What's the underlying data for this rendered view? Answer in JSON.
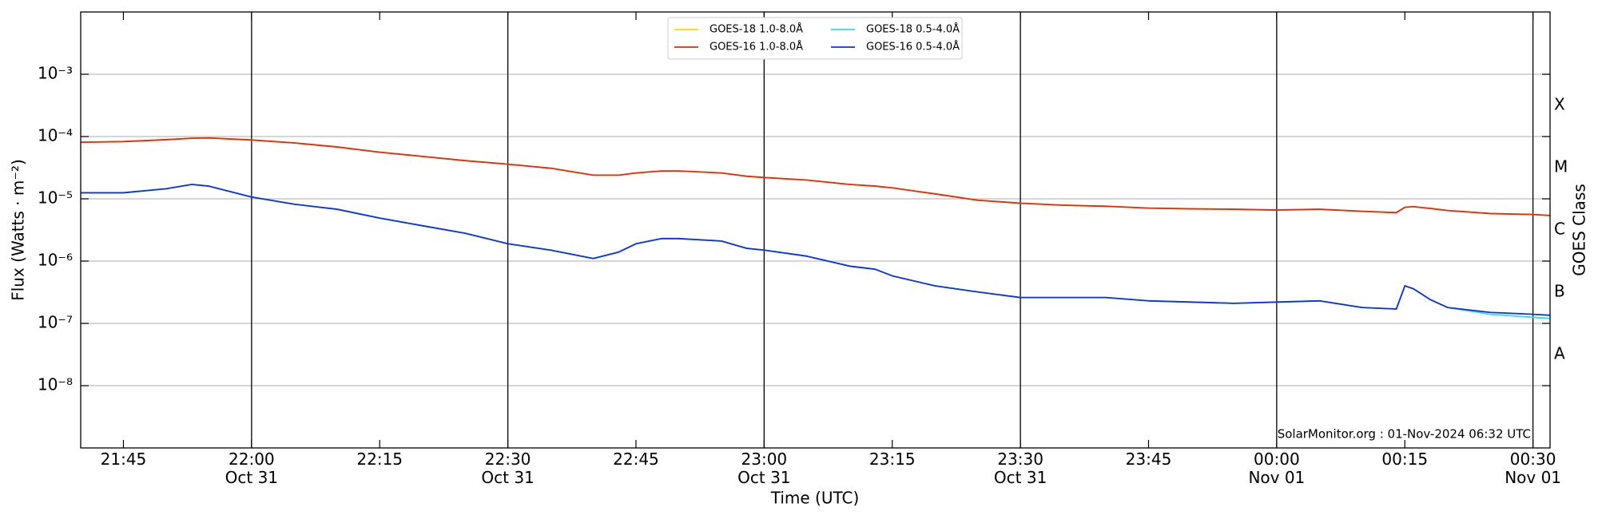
{
  "chart_data": {
    "type": "line",
    "xlabel": "Time (UTC)",
    "ylabel": "Flux (Watts · m⁻²)",
    "y2label": "GOES Class",
    "annotation": "SolarMonitor.org : 01-Nov-2024 06:32 UTC",
    "log_y": true,
    "grid": true,
    "legend": "upper center",
    "ylim": [
      1e-09,
      0.01
    ],
    "yticks": [
      {
        "value": 1e-08,
        "label": "10⁻⁸"
      },
      {
        "value": 1e-07,
        "label": "10⁻⁷"
      },
      {
        "value": 1e-06,
        "label": "10⁻⁶"
      },
      {
        "value": 1e-05,
        "label": "10⁻⁵"
      },
      {
        "value": 0.0001,
        "label": "10⁻⁴"
      },
      {
        "value": 0.001,
        "label": "10⁻³"
      }
    ],
    "class_labels": [
      "A",
      "B",
      "C",
      "M",
      "X"
    ],
    "class_ticks": [
      1e-08,
      1e-07,
      1e-06,
      1e-05,
      0.0001
    ],
    "xlim": [
      "Oct 31 21:40",
      "Nov 01 00:32"
    ],
    "xticks": [
      {
        "value": "Oct 31 21:45",
        "label": "21:45"
      },
      {
        "value": "Oct 31 22:00",
        "label": "22:00\nOct 31"
      },
      {
        "value": "Oct 31 22:15",
        "label": "22:15"
      },
      {
        "value": "Oct 31 22:30",
        "label": "22:30\nOct 31"
      },
      {
        "value": "Oct 31 22:45",
        "label": "22:45"
      },
      {
        "value": "Oct 31 23:00",
        "label": "23:00\nOct 31"
      },
      {
        "value": "Oct 31 23:15",
        "label": "23:15"
      },
      {
        "value": "Oct 31 23:30",
        "label": "23:30\nOct 31"
      },
      {
        "value": "Oct 31 23:45",
        "label": "23:45"
      },
      {
        "value": "Nov 01 00:00",
        "label": "00:00\nNov 01"
      },
      {
        "value": "Nov 01 00:15",
        "label": "00:15"
      },
      {
        "value": "Nov 01 00:30",
        "label": "00:30\nNov 01"
      }
    ],
    "x": [
      "Oct 31 21:40",
      "Oct 31 21:45",
      "Oct 31 21:50",
      "Oct 31 21:53",
      "Oct 31 21:55",
      "Oct 31 22:00",
      "Oct 31 22:05",
      "Oct 31 22:10",
      "Oct 31 22:15",
      "Oct 31 22:20",
      "Oct 31 22:25",
      "Oct 31 22:30",
      "Oct 31 22:35",
      "Oct 31 22:40",
      "Oct 31 22:43",
      "Oct 31 22:45",
      "Oct 31 22:48",
      "Oct 31 22:50",
      "Oct 31 22:55",
      "Oct 31 22:58",
      "Oct 31 23:00",
      "Oct 31 23:05",
      "Oct 31 23:10",
      "Oct 31 23:13",
      "Oct 31 23:15",
      "Oct 31 23:20",
      "Oct 31 23:25",
      "Oct 31 23:30",
      "Oct 31 23:35",
      "Oct 31 23:40",
      "Oct 31 23:45",
      "Oct 31 23:50",
      "Oct 31 23:55",
      "Nov 01 00:00",
      "Nov 01 00:05",
      "Nov 01 00:10",
      "Nov 01 00:14",
      "Nov 01 00:15",
      "Nov 01 00:16",
      "Nov 01 00:18",
      "Nov 01 00:20",
      "Nov 01 00:25",
      "Nov 01 00:30",
      "Nov 01 00:32"
    ],
    "series": [
      {
        "name": "GOES-18 1.0-8.0Å",
        "color": "#ffd700",
        "values": [
          8.1e-05,
          8.3e-05,
          8.9e-05,
          9.4e-05,
          9.5e-05,
          8.8e-05,
          7.9e-05,
          6.8e-05,
          5.6e-05,
          4.8e-05,
          4.1e-05,
          3.6e-05,
          3.1e-05,
          2.4e-05,
          2.4e-05,
          2.6e-05,
          2.8e-05,
          2.8e-05,
          2.6e-05,
          2.3e-05,
          2.2e-05,
          2e-05,
          1.7e-05,
          1.6e-05,
          1.5e-05,
          1.2e-05,
          9.5e-06,
          8.5e-06,
          7.9e-06,
          7.6e-06,
          7.1e-06,
          6.9e-06,
          6.8e-06,
          6.6e-06,
          6.8e-06,
          6.3e-06,
          6e-06,
          7.3e-06,
          7.5e-06,
          7e-06,
          6.5e-06,
          5.8e-06,
          5.6e-06,
          5.4e-06
        ]
      },
      {
        "name": "GOES-16 1.0-8.0Å",
        "color": "#e8280a",
        "values": [
          8.1e-05,
          8.3e-05,
          8.9e-05,
          9.4e-05,
          9.5e-05,
          8.8e-05,
          7.9e-05,
          6.8e-05,
          5.6e-05,
          4.8e-05,
          4.1e-05,
          3.6e-05,
          3.1e-05,
          2.4e-05,
          2.4e-05,
          2.6e-05,
          2.8e-05,
          2.8e-05,
          2.6e-05,
          2.3e-05,
          2.2e-05,
          2e-05,
          1.7e-05,
          1.6e-05,
          1.5e-05,
          1.2e-05,
          9.5e-06,
          8.5e-06,
          7.9e-06,
          7.6e-06,
          7.1e-06,
          6.9e-06,
          6.8e-06,
          6.6e-06,
          6.8e-06,
          6.3e-06,
          6e-06,
          7.3e-06,
          7.5e-06,
          7e-06,
          6.5e-06,
          5.8e-06,
          5.6e-06,
          5.4e-06
        ]
      },
      {
        "name": "GOES-18 0.5-4.0Å",
        "color": "#33dddd",
        "values": [
          1.25e-05,
          1.25e-05,
          1.45e-05,
          1.7e-05,
          1.6e-05,
          1.07e-05,
          8.2e-06,
          6.8e-06,
          4.9e-06,
          3.7e-06,
          2.8e-06,
          1.9e-06,
          1.5e-06,
          1.1e-06,
          1.4e-06,
          1.9e-06,
          2.3e-06,
          2.3e-06,
          2.1e-06,
          1.6e-06,
          1.5e-06,
          1.2e-06,
          8.3e-07,
          7.4e-07,
          5.8e-07,
          4e-07,
          3.2e-07,
          2.6e-07,
          2.6e-07,
          2.6e-07,
          2.3e-07,
          2.2e-07,
          2.1e-07,
          2.2e-07,
          2.3e-07,
          1.8e-07,
          1.7e-07,
          4e-07,
          3.6e-07,
          2.4e-07,
          1.8e-07,
          1.4e-07,
          1.25e-07,
          1.2e-07
        ]
      },
      {
        "name": "GOES-16 0.5-4.0Å",
        "color": "#1030e0",
        "values": [
          1.25e-05,
          1.25e-05,
          1.45e-05,
          1.7e-05,
          1.6e-05,
          1.07e-05,
          8.2e-06,
          6.8e-06,
          4.9e-06,
          3.7e-06,
          2.8e-06,
          1.9e-06,
          1.5e-06,
          1.1e-06,
          1.4e-06,
          1.9e-06,
          2.3e-06,
          2.3e-06,
          2.1e-06,
          1.6e-06,
          1.5e-06,
          1.2e-06,
          8.3e-07,
          7.4e-07,
          5.8e-07,
          4e-07,
          3.2e-07,
          2.6e-07,
          2.6e-07,
          2.6e-07,
          2.3e-07,
          2.2e-07,
          2.1e-07,
          2.2e-07,
          2.3e-07,
          1.8e-07,
          1.7e-07,
          4e-07,
          3.6e-07,
          2.4e-07,
          1.8e-07,
          1.5e-07,
          1.4e-07,
          1.35e-07
        ]
      }
    ]
  }
}
